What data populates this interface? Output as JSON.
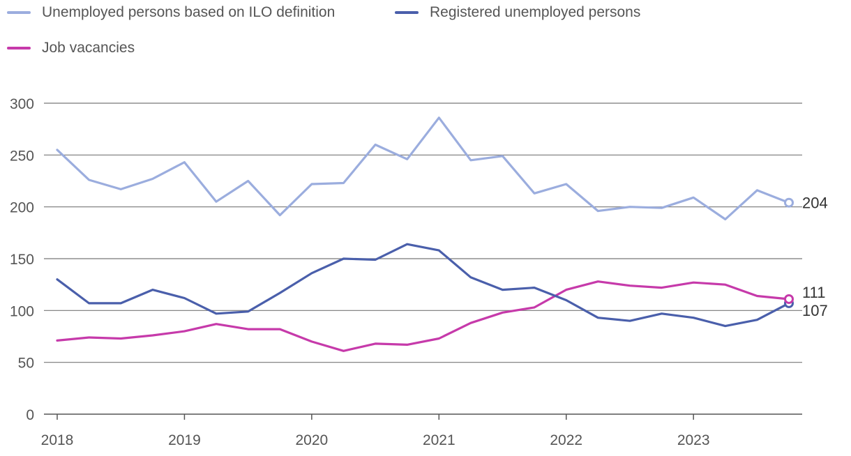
{
  "chart_data": {
    "type": "line",
    "title": "",
    "xlabel": "",
    "ylabel": "",
    "ylim": [
      0,
      300
    ],
    "yticks": [
      0,
      50,
      100,
      150,
      200,
      250,
      300
    ],
    "xtick_labels": [
      "2018",
      "2019",
      "2020",
      "2021",
      "2022",
      "2023"
    ],
    "x": [
      "2018Q1",
      "2018Q2",
      "2018Q3",
      "2018Q4",
      "2019Q1",
      "2019Q2",
      "2019Q3",
      "2019Q4",
      "2020Q1",
      "2020Q2",
      "2020Q3",
      "2020Q4",
      "2021Q1",
      "2021Q2",
      "2021Q3",
      "2021Q4",
      "2022Q1",
      "2022Q2",
      "2022Q3",
      "2022Q4",
      "2023Q1",
      "2023Q2",
      "2023Q3",
      "2023Q4"
    ],
    "grid": true,
    "legend_position": "top-left",
    "series": [
      {
        "name": "Unemployed persons based on ILO definition",
        "color": "#9badde",
        "values": [
          255,
          226,
          217,
          227,
          243,
          205,
          225,
          192,
          222,
          223,
          260,
          246,
          286,
          245,
          249,
          213,
          222,
          196,
          200,
          199,
          209,
          188,
          216,
          204
        ],
        "end_label": "204"
      },
      {
        "name": "Registered unemployed persons",
        "color": "#4a5fab",
        "values": [
          130,
          107,
          107,
          120,
          112,
          97,
          99,
          117,
          136,
          150,
          149,
          164,
          158,
          132,
          120,
          122,
          110,
          93,
          90,
          97,
          93,
          85,
          91,
          107
        ],
        "end_label": "107"
      },
      {
        "name": "Job vacancies",
        "color": "#c63aaa",
        "values": [
          71,
          74,
          73,
          76,
          80,
          87,
          82,
          82,
          70,
          61,
          68,
          67,
          73,
          88,
          98,
          103,
          120,
          128,
          124,
          122,
          127,
          125,
          114,
          111
        ],
        "end_label": "111"
      }
    ]
  }
}
